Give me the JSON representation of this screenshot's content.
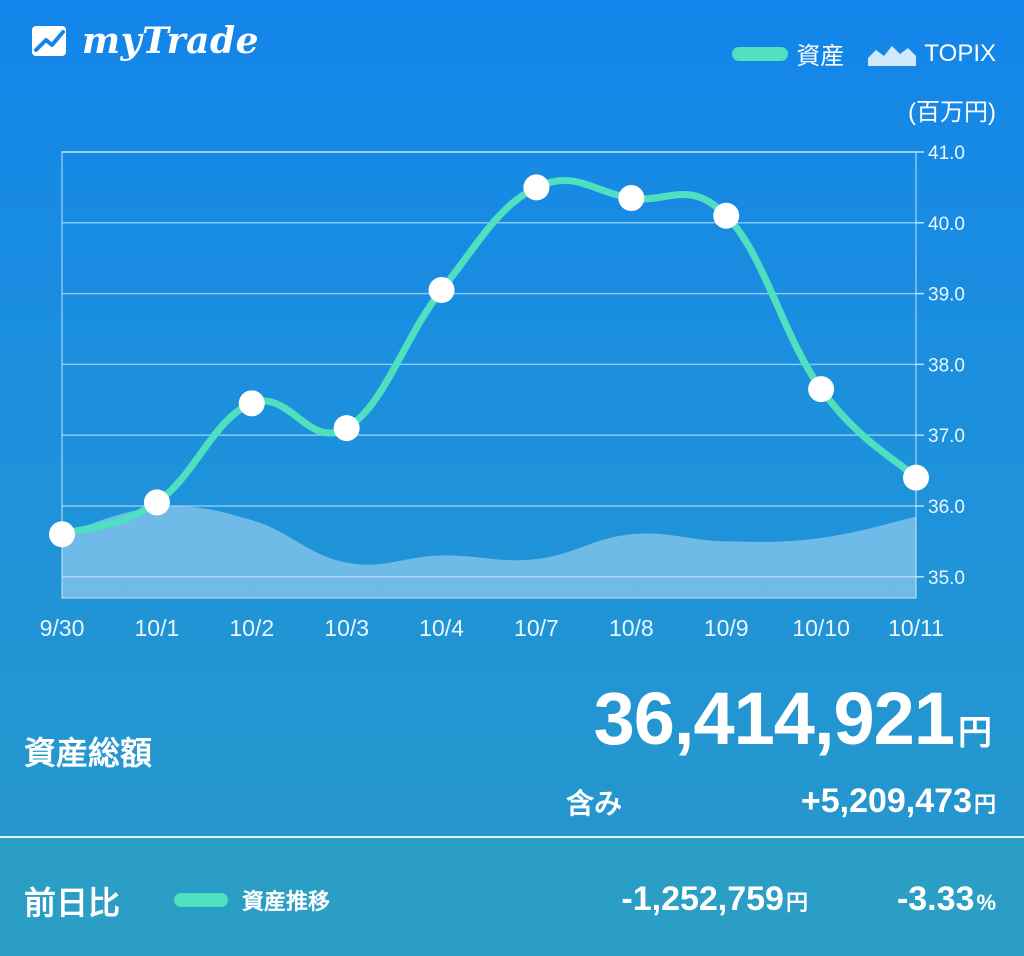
{
  "app": {
    "title": "myTrade"
  },
  "legend": {
    "asset_label": "資産",
    "topix_label": "TOPIX",
    "unit": "(百万円)"
  },
  "colors": {
    "asset_line": "#4fe0bf",
    "topix_area": "rgba(210,235,250,0.45)",
    "background": "#1a8ce2"
  },
  "chart_data": {
    "type": "line",
    "categories": [
      "9/30",
      "10/1",
      "10/2",
      "10/3",
      "10/4",
      "10/7",
      "10/8",
      "10/9",
      "10/10",
      "10/11"
    ],
    "series": [
      {
        "name": "資産",
        "values": [
          35.6,
          36.05,
          37.45,
          37.1,
          39.05,
          40.5,
          40.35,
          40.1,
          37.65,
          36.4
        ]
      },
      {
        "name": "TOPIX",
        "values": [
          35.6,
          35.98,
          35.8,
          35.2,
          35.3,
          35.25,
          35.6,
          35.5,
          35.55,
          35.85
        ]
      }
    ],
    "y_ticks": [
      "41.0",
      "40.0",
      "39.0",
      "38.0",
      "37.0",
      "36.0",
      "35.0"
    ],
    "ylim": [
      34.7,
      41.0
    ],
    "y_axis_side": "right",
    "grid": true,
    "legend_position": "top-right"
  },
  "summary": {
    "total_label": "資産総額",
    "total_value": "36,414,921",
    "yen": "円",
    "includes_label": "含み",
    "includes_value": "+5,209,473"
  },
  "daily": {
    "label": "前日比",
    "legend_label": "資産推移",
    "diff_value": "-1,252,759",
    "pct_value": "-3.33",
    "pct_sign": "%"
  }
}
